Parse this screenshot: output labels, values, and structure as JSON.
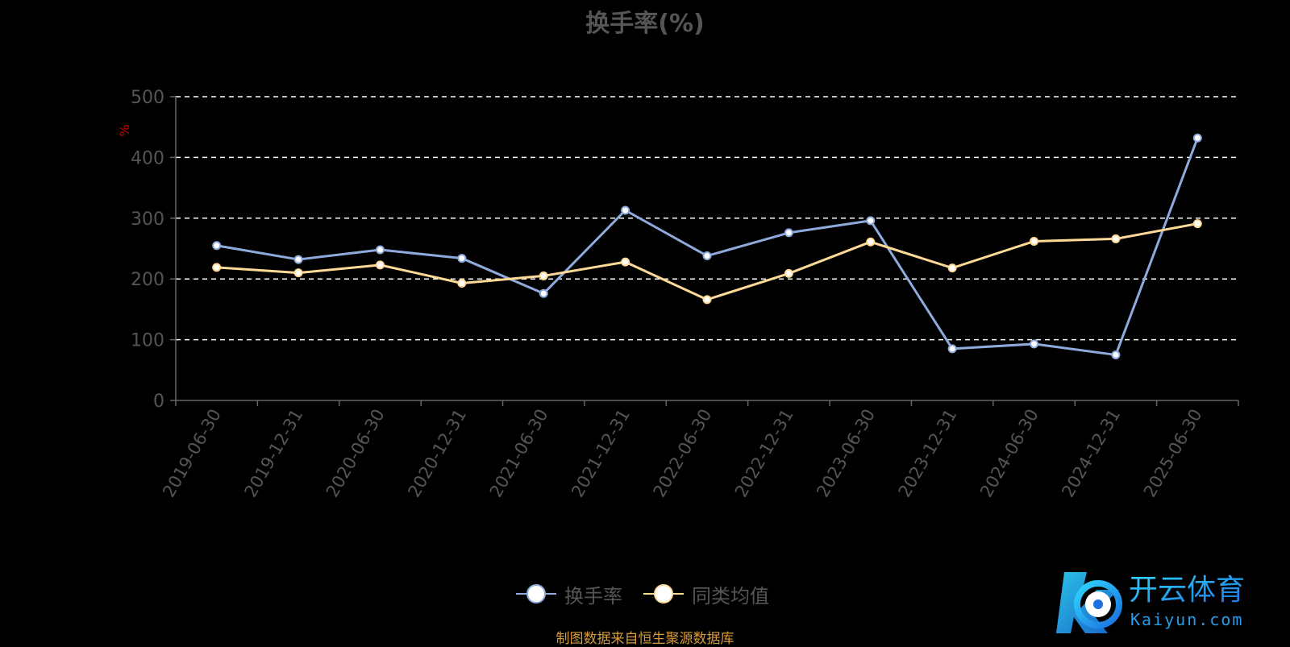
{
  "chart_data": {
    "type": "line",
    "title": "换手率(%)",
    "ylabel": "%",
    "ylim": [
      0,
      500
    ],
    "yticks": [
      0,
      100,
      200,
      300,
      400,
      500
    ],
    "grid": true,
    "legend_position": "bottom-center",
    "categories": [
      "2019-06-30",
      "2019-12-31",
      "2020-06-30",
      "2020-12-31",
      "2021-06-30",
      "2021-12-31",
      "2022-06-30",
      "2022-12-31",
      "2023-06-30",
      "2023-12-31",
      "2024-06-30",
      "2024-12-31",
      "2025-06-30"
    ],
    "series": [
      {
        "name": "换手率",
        "color": "#8faadc",
        "values": [
          255,
          232,
          248,
          234,
          176,
          313,
          238,
          276,
          296,
          85,
          93,
          75,
          432
        ]
      },
      {
        "name": "同类均值",
        "color": "#ffd997",
        "values": [
          219,
          210,
          223,
          193,
          205,
          228,
          166,
          209,
          261,
          218,
          262,
          266,
          291
        ]
      }
    ]
  },
  "footer": {
    "source": "制图数据来自恒生聚源数据库"
  },
  "watermark": {
    "brand_cn": "开云体育",
    "brand_en": "Kaiyun.com"
  }
}
